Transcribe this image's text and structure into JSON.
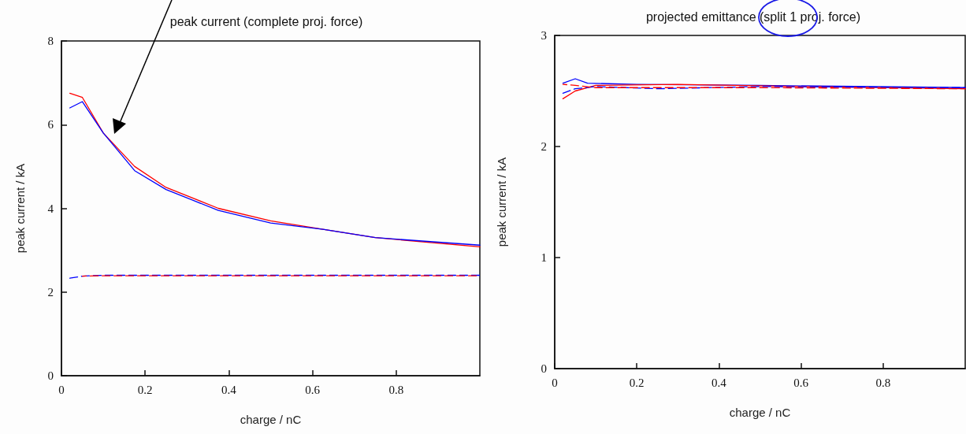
{
  "chart_data": [
    {
      "type": "line",
      "title": "peak current (complete proj. force)",
      "xlabel": "charge / nC",
      "ylabel": "peak current / kA",
      "xlim": [
        0,
        1
      ],
      "xticks": [
        0,
        0.2,
        0.4,
        0.6,
        0.8
      ],
      "ylim": [
        0,
        8
      ],
      "yticks": [
        0,
        2,
        4,
        6,
        8
      ],
      "grid": false,
      "marker": "none",
      "series": [
        {
          "color": "#ff0000",
          "line_style": "solid",
          "x": [
            0.02,
            0.05,
            0.1,
            0.175,
            0.25,
            0.375,
            0.5,
            0.625,
            0.75,
            1.0
          ],
          "values": [
            6.75,
            6.65,
            5.8,
            5.0,
            4.5,
            4.0,
            3.7,
            3.5,
            3.3,
            3.08
          ]
        },
        {
          "color": "#0000ff",
          "line_style": "solid",
          "x": [
            0.02,
            0.05,
            0.1,
            0.175,
            0.25,
            0.375,
            0.5,
            0.625,
            0.75,
            1.0
          ],
          "values": [
            6.4,
            6.55,
            5.8,
            4.9,
            4.45,
            3.95,
            3.65,
            3.5,
            3.3,
            3.12
          ]
        },
        {
          "color": "#0000ff",
          "line_style": "dashed",
          "x": [
            0.02,
            0.05,
            0.1,
            0.5,
            1.0
          ],
          "values": [
            2.33,
            2.38,
            2.4,
            2.4,
            2.4
          ]
        },
        {
          "color": "#ff0000",
          "line_style": "dashed",
          "x": [
            0.05,
            0.1,
            0.5,
            1.0
          ],
          "values": [
            2.38,
            2.39,
            2.39,
            2.39
          ]
        }
      ]
    },
    {
      "type": "line",
      "title": "projected emittance (split 1 proj. force)",
      "xlabel": "charge / nC",
      "ylabel": "peak current / kA",
      "xlim": [
        0,
        1
      ],
      "xticks": [
        0,
        0.2,
        0.4,
        0.6,
        0.8
      ],
      "ylim": [
        0,
        3
      ],
      "yticks": [
        0,
        1,
        2,
        3
      ],
      "grid": false,
      "marker": "none",
      "series": [
        {
          "color": "#0000ff",
          "line_style": "solid",
          "x": [
            0.02,
            0.05,
            0.08,
            0.2,
            0.5,
            1.0
          ],
          "values": [
            2.57,
            2.61,
            2.57,
            2.56,
            2.55,
            2.53
          ]
        },
        {
          "color": "#ff0000",
          "line_style": "solid",
          "x": [
            0.02,
            0.05,
            0.1,
            0.3,
            0.6,
            1.0
          ],
          "values": [
            2.43,
            2.5,
            2.55,
            2.56,
            2.54,
            2.52
          ]
        },
        {
          "color": "#0000ff",
          "line_style": "dashed",
          "x": [
            0.02,
            0.05,
            0.1,
            0.25,
            0.5,
            1.0
          ],
          "values": [
            2.48,
            2.52,
            2.54,
            2.52,
            2.54,
            2.53
          ]
        },
        {
          "color": "#ff0000",
          "line_style": "dashed",
          "x": [
            0.02,
            0.05,
            0.1,
            0.5,
            1.0
          ],
          "values": [
            2.56,
            2.55,
            2.53,
            2.53,
            2.52
          ]
        }
      ]
    }
  ]
}
